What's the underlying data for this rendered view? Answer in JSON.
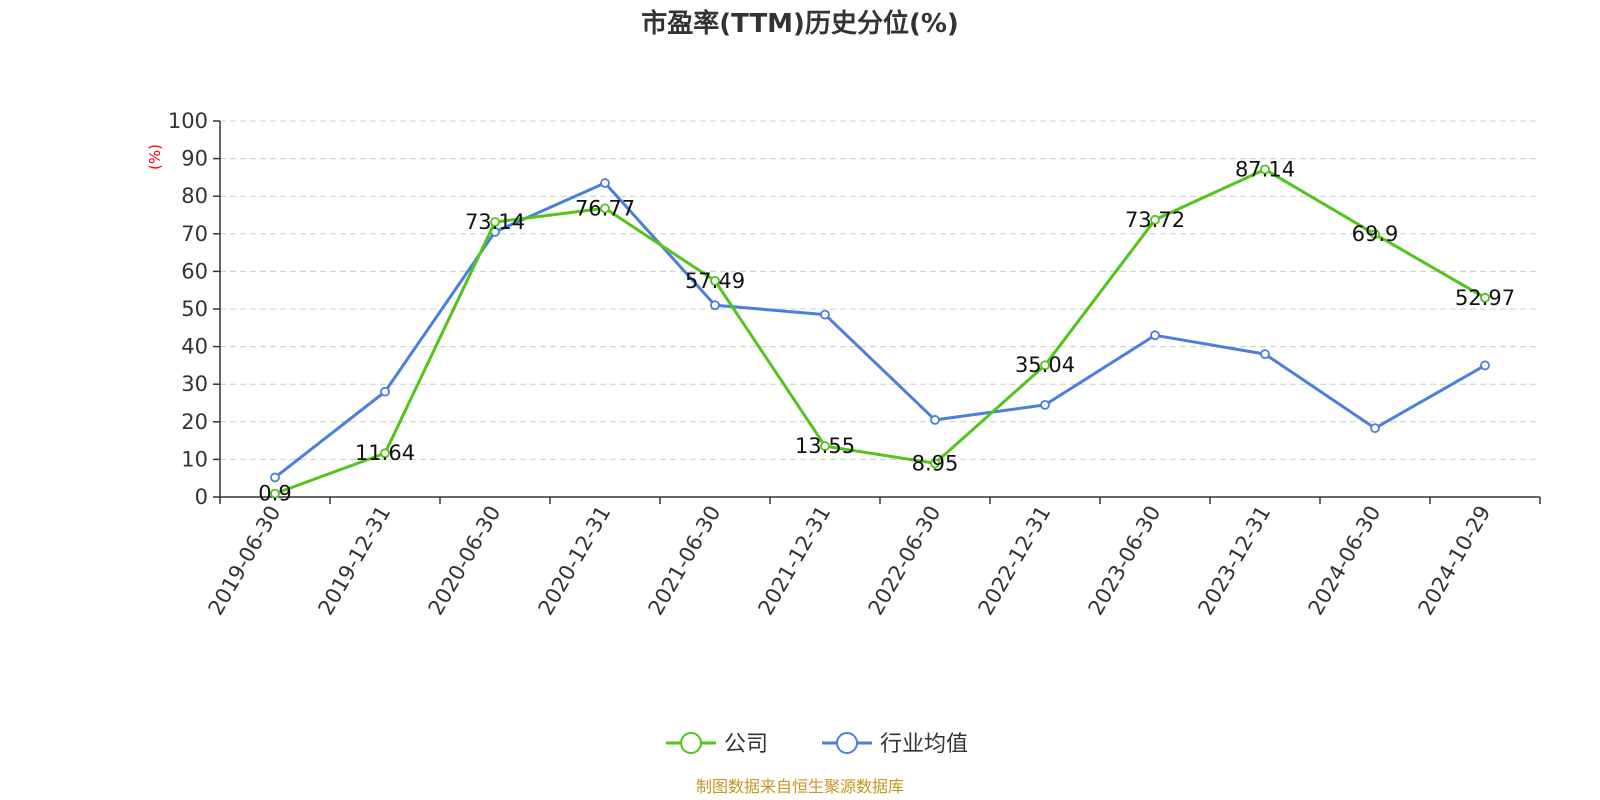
{
  "colors": {
    "company": "#52c41a",
    "industry": "#4a7fdc",
    "ylabel": "#ff0000",
    "source": "#c8961e",
    "grid": "#cccccc",
    "axis": "#333333"
  },
  "chart_data": {
    "type": "line",
    "title": "市盈率(TTM)历史分位(%)",
    "ylabel": "(%)",
    "xlabel": "",
    "ylim": [
      0,
      100
    ],
    "yticks": [
      0,
      10,
      20,
      30,
      40,
      50,
      60,
      70,
      80,
      90,
      100
    ],
    "grid": true,
    "legend_position": "bottom",
    "x": [
      "2019-06-30",
      "2019-12-31",
      "2020-06-30",
      "2020-12-31",
      "2021-06-30",
      "2021-12-31",
      "2022-06-30",
      "2022-12-31",
      "2023-06-30",
      "2023-12-31",
      "2024-06-30",
      "2024-10-29"
    ],
    "series": [
      {
        "name": "公司",
        "values": [
          0.9,
          11.64,
          73.14,
          76.77,
          57.49,
          13.55,
          8.95,
          35.04,
          73.72,
          87.14,
          69.9,
          52.97
        ],
        "labels": [
          "0.9",
          "11.64",
          "73.14",
          "76.77",
          "57.49",
          "13.55",
          "8.95",
          "35.04",
          "73.72",
          "87.14",
          "69.9",
          "52.97"
        ]
      },
      {
        "name": "行业均值",
        "values": [
          5.2,
          28.0,
          70.5,
          83.5,
          51.0,
          48.5,
          20.5,
          24.5,
          43.0,
          38.0,
          18.3,
          35.0
        ]
      }
    ]
  },
  "source": "制图数据来自恒生聚源数据库"
}
